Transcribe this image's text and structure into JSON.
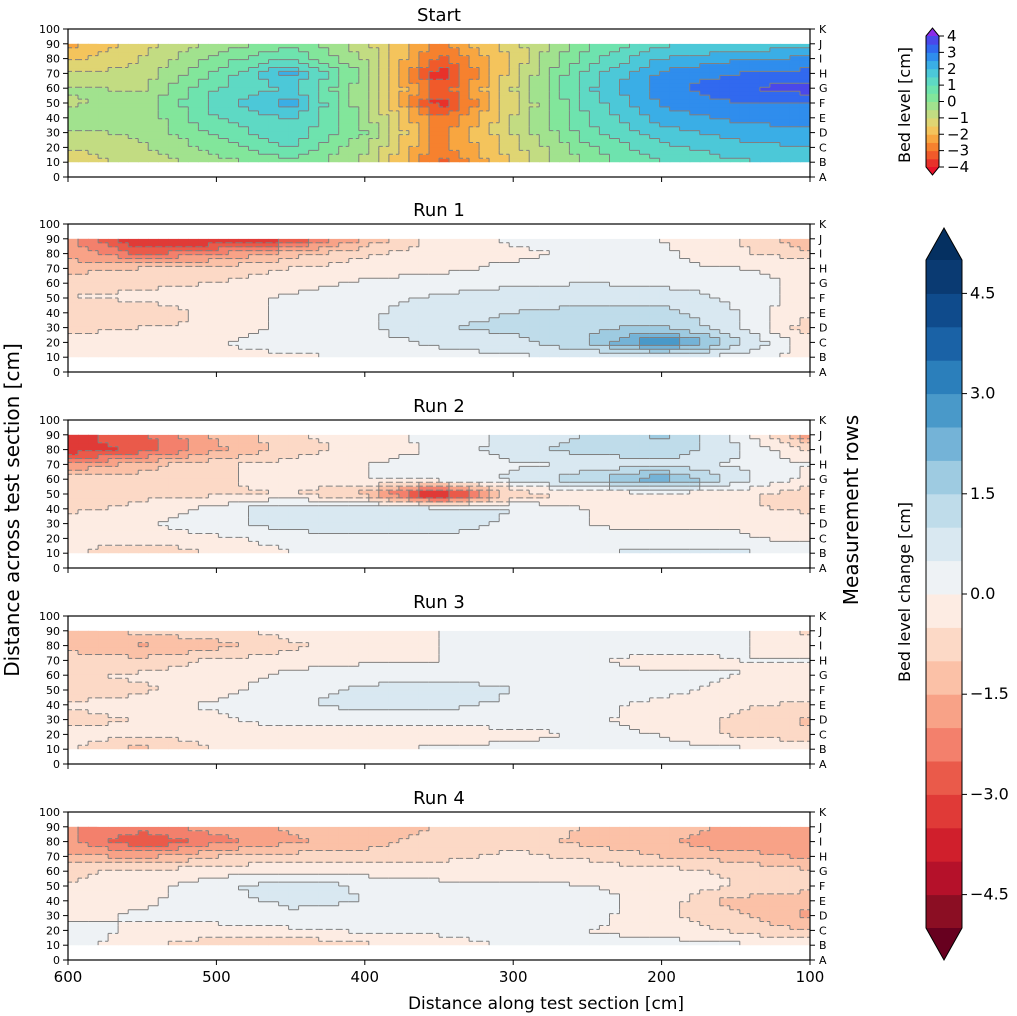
{
  "chart_data": {
    "type": "contour",
    "figure": {
      "xlabel": "Distance along test section [cm]",
      "ylabel_left": "Distance across test section [cm]",
      "ylabel_right": "Measurement rows",
      "xlim": [
        600,
        100
      ],
      "x_ticks": [
        600,
        500,
        400,
        300,
        200,
        100
      ],
      "ylim": [
        0,
        100
      ],
      "y_ticks": [
        0,
        10,
        20,
        30,
        40,
        50,
        60,
        70,
        80,
        90,
        100
      ],
      "row_labels": [
        "A",
        "B",
        "C",
        "D",
        "E",
        "F",
        "G",
        "H",
        "I",
        "J",
        "K"
      ]
    },
    "panels": [
      {
        "title": "Start",
        "colorbar": "bed_level",
        "grid_x": [
          600,
          550,
          500,
          450,
          400,
          350,
          300,
          250,
          200,
          150,
          100
        ],
        "grid_y": [
          10,
          20,
          30,
          40,
          50,
          60,
          70,
          80,
          90
        ],
        "values": [
          [
            -1.4,
            -0.8,
            -0.2,
            0.4,
            -0.6,
            -3.2,
            -1.4,
            0.2,
            1.0,
            1.4,
            1.6
          ],
          [
            -1.0,
            -0.6,
            0.2,
            1.0,
            -0.4,
            -2.8,
            -1.2,
            0.4,
            1.4,
            1.8,
            2.0
          ],
          [
            -0.6,
            -0.4,
            0.6,
            1.4,
            0.0,
            -2.8,
            -1.0,
            0.8,
            1.8,
            2.2,
            2.4
          ],
          [
            -0.2,
            -0.4,
            1.0,
            1.6,
            -0.2,
            -3.0,
            -1.0,
            1.0,
            2.2,
            2.6,
            2.8
          ],
          [
            -0.6,
            -0.2,
            1.2,
            2.2,
            -0.4,
            -3.8,
            -1.2,
            1.2,
            2.6,
            3.0,
            3.0
          ],
          [
            -0.4,
            -0.6,
            1.0,
            1.6,
            -0.4,
            -3.4,
            -1.0,
            1.4,
            2.8,
            3.4,
            3.8
          ],
          [
            -1.0,
            -0.8,
            0.6,
            2.2,
            -0.2,
            -3.9,
            -1.2,
            1.2,
            2.6,
            3.0,
            3.2
          ],
          [
            -1.6,
            -1.0,
            0.2,
            1.0,
            -0.6,
            -3.2,
            -1.4,
            0.8,
            2.0,
            2.4,
            2.6
          ],
          [
            -2.2,
            -1.2,
            -0.4,
            0.4,
            -0.8,
            -2.6,
            -1.2,
            0.4,
            1.4,
            1.6,
            1.8
          ]
        ]
      },
      {
        "title": "Run 1",
        "colorbar": "bed_level_change",
        "grid_x": [
          600,
          550,
          500,
          450,
          400,
          350,
          300,
          250,
          200,
          150,
          100
        ],
        "grid_y": [
          10,
          20,
          30,
          40,
          50,
          60,
          70,
          80,
          90
        ],
        "values": [
          [
            -0.4,
            -0.3,
            -0.2,
            -0.2,
            0.2,
            0.3,
            0.4,
            0.5,
            0.6,
            0.3,
            -0.2
          ],
          [
            -0.4,
            -0.3,
            -0.1,
            0.5,
            0.3,
            0.6,
            0.8,
            1.5,
            3.2,
            1.2,
            -0.4
          ],
          [
            -0.6,
            -0.5,
            -0.4,
            0.2,
            0.4,
            0.9,
            1.2,
            1.4,
            1.6,
            0.6,
            -0.8
          ],
          [
            -1.0,
            -0.9,
            -0.3,
            0.1,
            0.4,
            0.8,
            1.0,
            1.1,
            1.2,
            0.5,
            -0.5
          ],
          [
            -0.5,
            -0.4,
            -0.2,
            0.1,
            0.3,
            0.6,
            0.8,
            0.9,
            0.8,
            0.4,
            -0.3
          ],
          [
            -0.6,
            -0.6,
            -0.5,
            -0.2,
            0.1,
            0.2,
            0.4,
            0.5,
            0.4,
            0.3,
            -0.2
          ],
          [
            -1.2,
            -1.0,
            -0.8,
            -0.5,
            -0.2,
            -0.1,
            0.1,
            0.1,
            0.1,
            0.0,
            -0.1
          ],
          [
            -1.6,
            -2.6,
            -2.0,
            -1.2,
            -0.6,
            -0.2,
            -0.1,
            0.1,
            0.1,
            -0.4,
            -0.8
          ],
          [
            -1.8,
            -3.6,
            -3.6,
            -3.2,
            -1.4,
            -0.3,
            0.1,
            0.1,
            0.0,
            -0.4,
            -1.6
          ]
        ]
      },
      {
        "title": "Run 2",
        "colorbar": "bed_level_change",
        "grid_x": [
          600,
          550,
          500,
          450,
          400,
          350,
          300,
          250,
          200,
          150,
          100
        ],
        "grid_y": [
          10,
          20,
          30,
          40,
          50,
          60,
          70,
          80,
          90
        ],
        "values": [
          [
            -0.4,
            -1.0,
            -0.4,
            0.0,
            0.2,
            0.4,
            0.4,
            0.5,
            0.6,
            0.6,
            0.4
          ],
          [
            -0.3,
            -0.2,
            -0.1,
            0.2,
            0.4,
            0.4,
            0.3,
            0.2,
            0.2,
            0.1,
            -0.2
          ],
          [
            -0.2,
            -0.1,
            0.3,
            0.8,
            0.8,
            0.7,
            0.4,
            0.0,
            -0.2,
            -0.1,
            -0.3
          ],
          [
            -0.6,
            -0.4,
            0.2,
            1.0,
            1.0,
            0.8,
            0.5,
            0.0,
            -0.3,
            -0.4,
            -0.6
          ],
          [
            -1.0,
            -0.6,
            -0.6,
            -0.5,
            -1.2,
            -4.2,
            -0.8,
            -0.4,
            -0.2,
            -0.4,
            -0.8
          ],
          [
            -0.6,
            -0.8,
            -0.6,
            -0.2,
            0.0,
            0.3,
            0.6,
            1.4,
            2.4,
            0.8,
            -0.2
          ],
          [
            -2.0,
            -1.2,
            -0.6,
            -0.3,
            0.0,
            0.2,
            0.4,
            0.6,
            0.8,
            0.4,
            0.0
          ],
          [
            -3.4,
            -2.8,
            -1.6,
            -0.8,
            -0.3,
            0.1,
            0.8,
            1.2,
            1.4,
            0.6,
            -0.6
          ],
          [
            -3.2,
            -2.6,
            -1.4,
            -0.6,
            -0.2,
            0.2,
            0.6,
            1.0,
            1.6,
            0.4,
            -1.8
          ]
        ]
      },
      {
        "title": "Run 3",
        "colorbar": "bed_level_change",
        "grid_x": [
          600,
          550,
          500,
          450,
          400,
          350,
          300,
          250,
          200,
          150,
          100
        ],
        "grid_y": [
          10,
          20,
          30,
          40,
          50,
          60,
          70,
          80,
          90
        ],
        "values": [
          [
            -0.4,
            -1.2,
            -0.4,
            -0.2,
            -0.1,
            0.1,
            0.2,
            0.3,
            0.2,
            0.1,
            0.0
          ],
          [
            -0.2,
            -0.4,
            -0.3,
            -0.2,
            -0.3,
            -0.4,
            -0.2,
            0.1,
            0.0,
            -0.6,
            -0.9
          ],
          [
            -0.8,
            -0.4,
            -0.1,
            0.2,
            0.2,
            0.3,
            0.3,
            0.1,
            -0.2,
            -0.6,
            -1.1
          ],
          [
            -0.4,
            -0.2,
            0.1,
            0.4,
            0.7,
            0.6,
            0.4,
            0.1,
            -0.1,
            -0.4,
            -0.6
          ],
          [
            -0.9,
            -0.6,
            -0.2,
            0.3,
            0.6,
            0.9,
            0.5,
            0.2,
            0.1,
            -0.1,
            -0.3
          ],
          [
            -0.6,
            -0.4,
            -0.2,
            0.1,
            0.3,
            0.2,
            0.2,
            0.1,
            0.1,
            0.0,
            -0.2
          ],
          [
            -0.9,
            -0.8,
            -0.4,
            -0.2,
            -0.1,
            0.0,
            0.1,
            0.1,
            -0.2,
            0.0,
            0.0
          ],
          [
            -1.0,
            -1.6,
            -1.2,
            -0.6,
            -0.2,
            0.0,
            0.1,
            0.2,
            0.2,
            0.1,
            -0.3
          ],
          [
            -1.4,
            -0.8,
            -0.6,
            -0.3,
            -0.2,
            0.0,
            0.1,
            0.2,
            0.2,
            0.1,
            -0.6
          ]
        ]
      },
      {
        "title": "Run 4",
        "colorbar": "bed_level_change",
        "grid_x": [
          600,
          550,
          500,
          450,
          400,
          350,
          300,
          250,
          200,
          150,
          100
        ],
        "grid_y": [
          10,
          20,
          30,
          40,
          50,
          60,
          70,
          80,
          90
        ],
        "values": [
          [
            0.3,
            -0.4,
            -0.8,
            -1.0,
            -0.6,
            -0.2,
            0.1,
            0.2,
            0.2,
            0.1,
            -0.2
          ],
          [
            0.2,
            -0.1,
            -0.2,
            -0.1,
            0.1,
            0.1,
            0.1,
            0.0,
            -0.2,
            -0.6,
            -1.0
          ],
          [
            -0.2,
            0.1,
            0.2,
            0.4,
            0.3,
            0.3,
            0.3,
            0.2,
            -0.4,
            -0.9,
            -1.6
          ],
          [
            -0.4,
            -0.1,
            0.3,
            0.6,
            0.5,
            0.4,
            0.3,
            0.2,
            -0.2,
            -1.2,
            -1.4
          ],
          [
            -0.5,
            -0.2,
            0.3,
            0.9,
            0.4,
            0.2,
            0.1,
            0.0,
            -0.2,
            -0.5,
            -0.8
          ],
          [
            -0.6,
            -0.4,
            -0.2,
            -0.1,
            -0.2,
            -0.3,
            -0.2,
            -0.2,
            -0.3,
            -0.6,
            -0.9
          ],
          [
            -1.4,
            -1.6,
            -1.0,
            -0.8,
            -0.8,
            -0.6,
            -0.4,
            -0.6,
            -1.0,
            -1.2,
            -1.6
          ],
          [
            -1.8,
            -3.0,
            -2.2,
            -1.6,
            -1.2,
            -0.8,
            -0.6,
            -1.2,
            -1.4,
            -2.0,
            -2.0
          ],
          [
            -2.0,
            -2.2,
            -1.8,
            -1.4,
            -1.2,
            -1.0,
            -0.8,
            -1.0,
            -1.2,
            -1.6,
            -1.8
          ]
        ]
      }
    ],
    "colorbars": {
      "bed_level": {
        "label": "Bed level [cm]",
        "range": [
          -4,
          4
        ],
        "levels": [
          -4,
          -3.5,
          -3,
          -2.5,
          -2,
          -1.5,
          -1,
          -0.5,
          0,
          0.5,
          1,
          1.5,
          2,
          2.5,
          3,
          3.5,
          4
        ],
        "ticks": [
          -4,
          -3,
          -2,
          -1,
          0,
          1,
          2,
          3,
          4
        ],
        "tick_labels": [
          "−4",
          "−3",
          "−2",
          "−1",
          "0",
          "1",
          "2",
          "3",
          "4"
        ],
        "colors": [
          "#e8312a",
          "#f05a2a",
          "#f6812e",
          "#f8a640",
          "#f4c45c",
          "#dfd573",
          "#c2dc82",
          "#a1e28e",
          "#82e69b",
          "#6ee3ae",
          "#5ed9c4",
          "#4cc8d8",
          "#3aaee6",
          "#2f8ded",
          "#3169ef",
          "#4a48ea"
        ],
        "extend_low": "#e8122a",
        "extend_high": "#8a2be8"
      },
      "bed_level_change": {
        "label": "Bed level change [cm]",
        "range": [
          -5,
          5
        ],
        "levels": [
          -5,
          -4.5,
          -4,
          -3.5,
          -3,
          -2.5,
          -2,
          -1.5,
          -1,
          -0.5,
          0,
          0.5,
          1,
          1.5,
          2,
          2.5,
          3,
          3.5,
          4,
          4.5,
          5
        ],
        "ticks": [
          -4.5,
          -3.0,
          -1.5,
          0.0,
          1.5,
          3.0,
          4.5
        ],
        "tick_labels": [
          "−4.5",
          "−3.0",
          "−1.5",
          "0.0",
          "1.5",
          "3.0",
          "4.5"
        ],
        "colors": [
          "#8b0e23",
          "#b5112a",
          "#d01f2c",
          "#e03a37",
          "#ea5a4a",
          "#f3806c",
          "#f8a287",
          "#fbc1a7",
          "#fcd9c6",
          "#fdece3",
          "#eef2f5",
          "#d9e8f1",
          "#bfdcea",
          "#9ecbe1",
          "#74b3d7",
          "#4999c9",
          "#2b7fbb",
          "#1a62a6",
          "#0f4b8c",
          "#0a3a72"
        ],
        "extend_low": "#67001f",
        "extend_high": "#053061"
      }
    }
  }
}
